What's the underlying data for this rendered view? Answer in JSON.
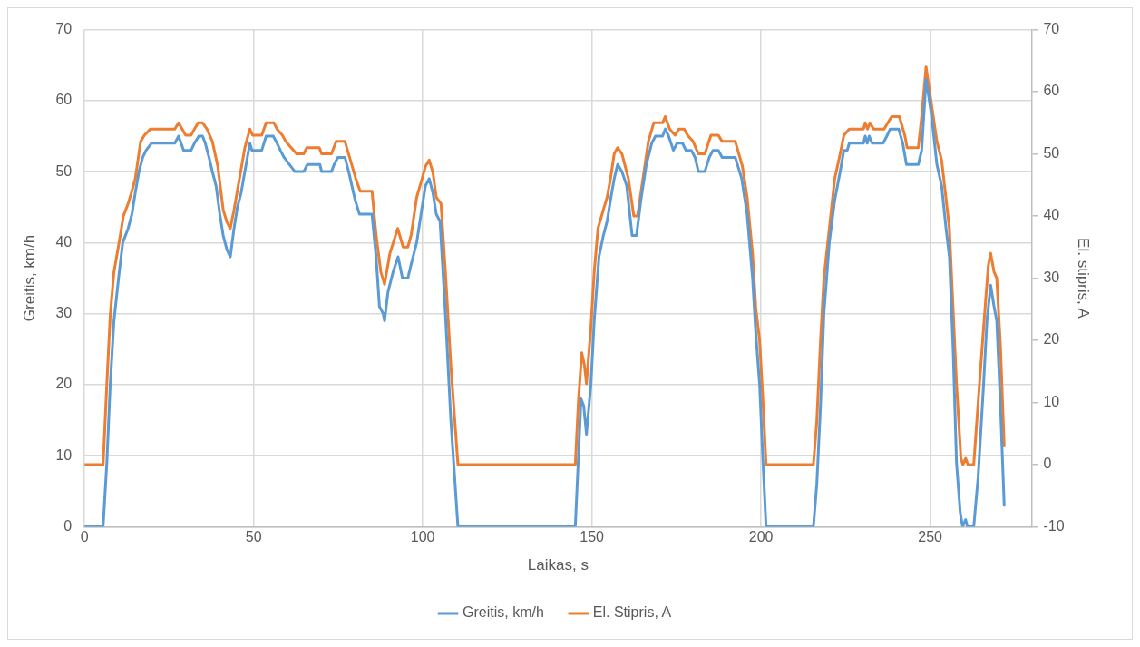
{
  "chart_data": {
    "type": "line",
    "xlabel": "Laikas, s",
    "ylabel": "Greitis, km/h",
    "y2label": "El. stipris, A",
    "xlim": [
      0,
      280
    ],
    "xticks": [
      0,
      50,
      100,
      150,
      200,
      250
    ],
    "ylim": [
      0,
      70
    ],
    "yticks": [
      0,
      10,
      20,
      30,
      40,
      50,
      60,
      70
    ],
    "y2lim": [
      -10,
      70
    ],
    "y2ticks": [
      -10,
      0,
      10,
      20,
      30,
      40,
      50,
      60,
      70
    ],
    "grid": true,
    "legend": "bottom",
    "marker": "none",
    "line_style": "solid",
    "series": [
      {
        "name": "Greitis, km/h",
        "color": "#5b9bd5",
        "x": [
          0,
          5.5,
          6.6,
          7.6,
          8.7,
          10.3,
          11.3,
          12.9,
          14,
          15,
          16.1,
          17.2,
          18.2,
          19.8,
          26.7,
          27.8,
          29.3,
          31.5,
          32.5,
          33.8,
          34.9,
          35.7,
          36.8,
          37.8,
          38.9,
          40,
          41,
          42.1,
          43.1,
          44.2,
          45.2,
          46.3,
          47.4,
          48.9,
          49.5,
          52.4,
          53.7,
          55.8,
          56.9,
          57.9,
          59,
          60.6,
          62.2,
          64.8,
          65.9,
          69.6,
          70.1,
          73,
          73.8,
          74.9,
          77,
          78.1,
          80,
          81.3,
          85,
          86.2,
          87.2,
          88.3,
          88.7,
          89.7,
          91.3,
          92.7,
          94,
          95.6,
          96.6,
          98.2,
          99.8,
          100.8,
          101.9,
          103,
          104,
          105.1,
          106.7,
          108.3,
          110.4,
          145.1,
          146.8,
          147.6,
          148.4,
          149.7,
          150.7,
          152.1,
          153.4,
          154.5,
          155.5,
          156.6,
          157.6,
          158.9,
          160.3,
          161.9,
          163.2,
          164.5,
          166.1,
          167.7,
          168.8,
          170.9,
          171.7,
          172.7,
          174.1,
          175.2,
          176.8,
          177.8,
          179.4,
          180.5,
          181.5,
          183.4,
          184.7,
          185.8,
          187.4,
          188.5,
          192.4,
          194.3,
          195.9,
          197.5,
          198.5,
          199.6,
          200.6,
          201.5,
          215.5,
          216.5,
          217.6,
          218.6,
          220.2,
          221.8,
          223.4,
          224.5,
          225.5,
          226.1,
          230.3,
          230.8,
          231.4,
          232,
          232.9,
          236.1,
          237.2,
          238.2,
          240.7,
          241.9,
          243,
          246.5,
          247.5,
          248.8,
          250.4,
          252,
          253.4,
          254.7,
          255.7,
          256.8,
          257.8,
          258.9,
          259.6,
          260.5,
          261,
          262.9,
          264.2,
          265.8,
          266.8,
          267.9,
          268.9,
          269.7,
          270.8,
          271.9
        ],
        "values": [
          0,
          0,
          9,
          20,
          29,
          36,
          40,
          42,
          44,
          47,
          50,
          52,
          53,
          54,
          54,
          55,
          53,
          53,
          54,
          55,
          55,
          54,
          52,
          50,
          48,
          44,
          41,
          39,
          38,
          42,
          45,
          47,
          50,
          54,
          53,
          53,
          55,
          55,
          54,
          53,
          52,
          51,
          50,
          50,
          51,
          51,
          50,
          50,
          51,
          52,
          52,
          50,
          46,
          44,
          44,
          38,
          31,
          30,
          29,
          33,
          36,
          38,
          35,
          35,
          37,
          40,
          45,
          48,
          49,
          47,
          44,
          43,
          30,
          15,
          0,
          0,
          18,
          17,
          13,
          20,
          29,
          38,
          41,
          43,
          46,
          49,
          51,
          50,
          48,
          41,
          41,
          46,
          51,
          54,
          55,
          55,
          56,
          55,
          53,
          54,
          54,
          53,
          53,
          52,
          50,
          50,
          52,
          53,
          53,
          52,
          52,
          49,
          44,
          35,
          27,
          20,
          9,
          0,
          0,
          6,
          17,
          30,
          40,
          46,
          50,
          53,
          53,
          54,
          54,
          55,
          54,
          55,
          54,
          54,
          55,
          56,
          56,
          54,
          51,
          51,
          53,
          63,
          58,
          51,
          48,
          42,
          38,
          25,
          9,
          2,
          0,
          1,
          0,
          0,
          7,
          20,
          29,
          34,
          31,
          29,
          17,
          3
        ]
      },
      {
        "name": "El. Stipris, A",
        "color": "#ed7d31",
        "axis": "y2",
        "x": [
          0,
          5.5,
          6.6,
          7.6,
          8.7,
          10.3,
          11.5,
          12.9,
          14,
          15,
          16.6,
          17.7,
          19.5,
          26.7,
          27.8,
          29.9,
          31.5,
          32.5,
          33.6,
          34.9,
          36.2,
          37.8,
          39.4,
          41,
          42.1,
          43.1,
          44.2,
          45.8,
          47.4,
          48.9,
          49.7,
          52.4,
          53.7,
          56,
          56.9,
          58.5,
          59.5,
          61.1,
          62.7,
          64.8,
          65.7,
          69.4,
          70.1,
          73,
          74.4,
          77,
          78.6,
          80.2,
          81.5,
          85,
          86.2,
          87.6,
          88.7,
          90.3,
          92.6,
          94.2,
          95.6,
          96.6,
          98.2,
          99.8,
          100.8,
          101.9,
          103,
          104,
          105.4,
          106.7,
          108.3,
          110.4,
          145.1,
          146,
          147,
          147.8,
          148.4,
          149.7,
          150.7,
          151.8,
          153.4,
          154.5,
          155.5,
          156.6,
          157.6,
          158.9,
          160.8,
          162.4,
          163.5,
          165.1,
          166.7,
          168.3,
          170.9,
          171.7,
          173,
          174.6,
          175.7,
          177.3,
          178.3,
          179.9,
          181.5,
          183.4,
          185.2,
          187.4,
          188.5,
          192.4,
          194.5,
          195.9,
          197.5,
          198.5,
          199.6,
          200.6,
          201.5,
          215.5,
          216.5,
          217.6,
          218.6,
          220.2,
          221.8,
          223.4,
          224.5,
          226.1,
          230.3,
          230.8,
          231.5,
          232.2,
          233.3,
          236.4,
          237.5,
          238.6,
          240.9,
          242.5,
          243.2,
          246.5,
          247.5,
          248.8,
          250.4,
          252,
          253.4,
          255.7,
          256.8,
          257.8,
          259.1,
          259.7,
          260.5,
          261.2,
          262.9,
          264.2,
          265.8,
          267.2,
          267.9,
          268.9,
          269.7,
          270.8,
          271.9
        ],
        "values": [
          0,
          0,
          13,
          24,
          31,
          36,
          40,
          42,
          44,
          46,
          52,
          53,
          54,
          54,
          55,
          53,
          53,
          54,
          55,
          55,
          54,
          52,
          48,
          41,
          39,
          38,
          41,
          46,
          51,
          54,
          53,
          53,
          55,
          55,
          54,
          53,
          52,
          51,
          50,
          50,
          51,
          51,
          50,
          50,
          52,
          52,
          49,
          46,
          44,
          44,
          37,
          31,
          29,
          34,
          38,
          35,
          35,
          37,
          43,
          46,
          48,
          49,
          47,
          43,
          42,
          31,
          16,
          0,
          0,
          10,
          18,
          16,
          13,
          22,
          31,
          38,
          41,
          43,
          46,
          50,
          51,
          50,
          46,
          40,
          40,
          46,
          52,
          55,
          55,
          56,
          54,
          53,
          54,
          54,
          53,
          52,
          50,
          50,
          53,
          53,
          52,
          52,
          48,
          43,
          34,
          25,
          20,
          10,
          0,
          0,
          7,
          20,
          30,
          38,
          46,
          50,
          53,
          54,
          54,
          55,
          54,
          55,
          54,
          54,
          55,
          56,
          56,
          53,
          51,
          51,
          56,
          64,
          58,
          52,
          49,
          38,
          25,
          13,
          1,
          0,
          1,
          0,
          0,
          10,
          22,
          32,
          34,
          31,
          30,
          19,
          3
        ]
      }
    ]
  }
}
